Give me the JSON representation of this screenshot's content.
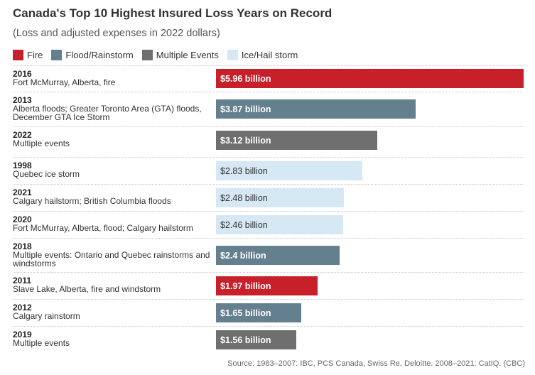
{
  "chart_data": {
    "type": "bar",
    "orientation": "horizontal",
    "title": "Canada's Top 10 Highest Insured Loss Years on Record",
    "subtitle": "(Loss and adjusted expenses in 2022 dollars)",
    "value_unit": "billion",
    "legend_placement": "top-left",
    "legend": [
      {
        "key": "fire",
        "label": "Fire",
        "color": "#c8202b"
      },
      {
        "key": "flood",
        "label": "Flood/Rainstorm",
        "color": "#647f8e"
      },
      {
        "key": "multiple",
        "label": "Multiple Events",
        "color": "#6f6f6f"
      },
      {
        "key": "ice",
        "label": "Ice/Hail storm",
        "color": "#d6e8f3"
      }
    ],
    "rows": [
      {
        "year": "2016",
        "description": "Fort McMurray, Alberta, fire",
        "value": 5.96,
        "label": "$5.96 billion",
        "category": "fire"
      },
      {
        "year": "2013",
        "description": "Alberta floods; Greater Toronto Area (GTA) floods, December GTA Ice Storm",
        "value": 3.87,
        "label": "$3.87 billion",
        "category": "flood"
      },
      {
        "year": "2022",
        "description": "Multiple events",
        "value": 3.12,
        "label": "$3.12 billion",
        "category": "multiple"
      },
      {
        "year": "1998",
        "description": "Quebec ice storm",
        "value": 2.83,
        "label": "$2.83 billion",
        "category": "ice"
      },
      {
        "year": "2021",
        "description": "Calgary hailstorm; British Columbia floods",
        "value": 2.48,
        "label": "$2.48 billion",
        "category": "ice"
      },
      {
        "year": "2020",
        "description": "Fort McMurray, Alberta, flood; Calgary hailstorm",
        "value": 2.46,
        "label": "$2.46 billion",
        "category": "ice"
      },
      {
        "year": "2018",
        "description": "Multiple events: Ontario and Quebec rainstorms and windstorms",
        "value": 2.4,
        "label": "$2.4 billion",
        "category": "flood"
      },
      {
        "year": "2011",
        "description": "Slave Lake, Alberta, fire and windstorm",
        "value": 1.97,
        "label": "$1.97 billion",
        "category": "fire"
      },
      {
        "year": "2012",
        "description": "Calgary rainstorm",
        "value": 1.65,
        "label": "$1.65 billion",
        "category": "flood"
      },
      {
        "year": "2019",
        "description": "Multiple events",
        "value": 1.56,
        "label": "$1.56 billion",
        "category": "multiple"
      }
    ],
    "xlim": [
      0,
      5.96
    ]
  },
  "source": "Source: 1983–2007: IBC, PCS Canada, Swiss Re, Deloitte. 2008–2021: CatIQ. (CBC)"
}
